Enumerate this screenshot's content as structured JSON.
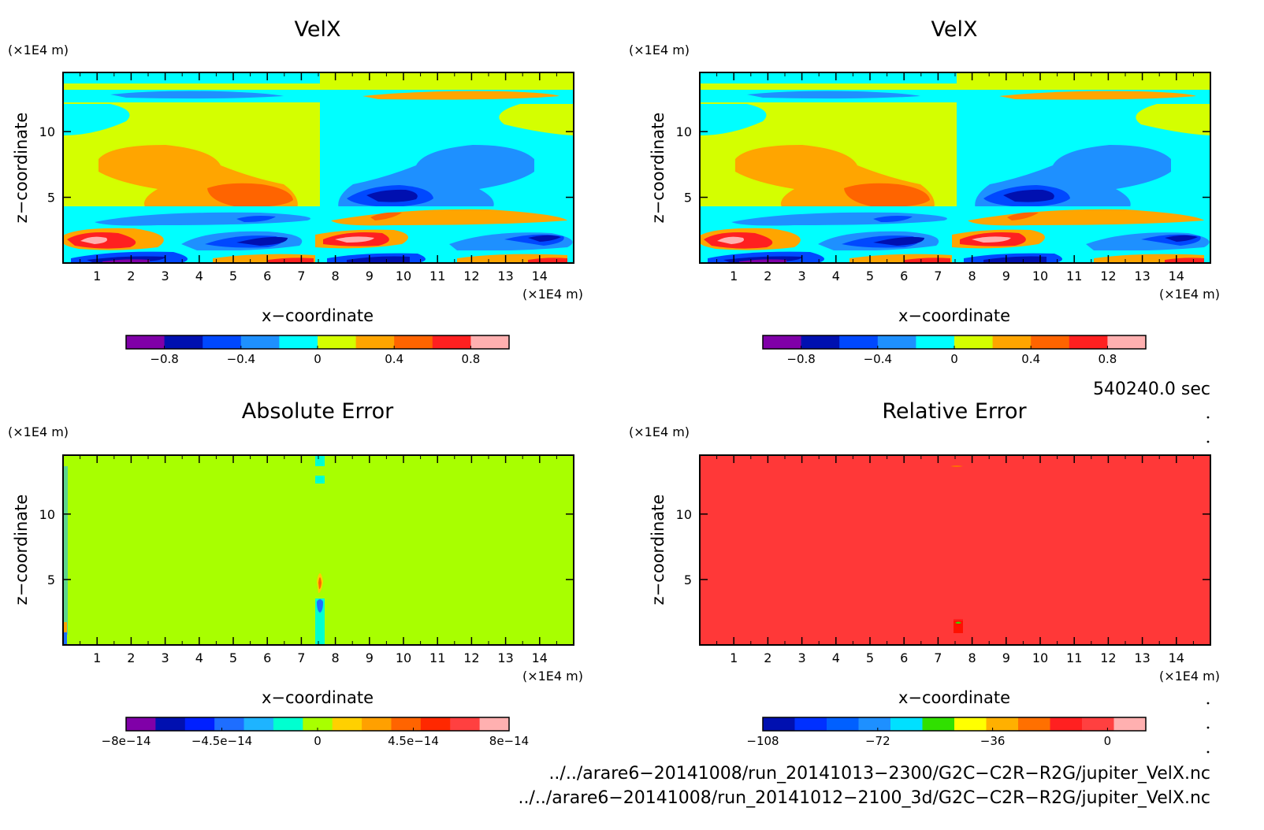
{
  "panels": [
    {
      "title": "VelX",
      "axis_unit": "(×1E4 m)",
      "xlabel": "x−coordinate",
      "ylabel": "z−coordinate",
      "x_ticks": [
        1,
        2,
        3,
        4,
        5,
        6,
        7,
        8,
        9,
        10,
        11,
        12,
        13,
        14
      ],
      "y_ticks": [
        5,
        10
      ],
      "colorbar": {
        "colors": [
          "#8000a8",
          "#0010b0",
          "#0048ff",
          "#1e90ff",
          "#00ffff",
          "#d4ff00",
          "#ffa500",
          "#ff6400",
          "#ff2020",
          "#ffb0b0"
        ],
        "labels": [
          "−0.8",
          "−0.4",
          "0",
          "0.4",
          "0.8"
        ]
      }
    },
    {
      "title": "VelX",
      "axis_unit": "(×1E4 m)",
      "xlabel": "x−coordinate",
      "ylabel": "z−coordinate",
      "x_ticks": [
        1,
        2,
        3,
        4,
        5,
        6,
        7,
        8,
        9,
        10,
        11,
        12,
        13,
        14
      ],
      "y_ticks": [
        5,
        10
      ],
      "colorbar": {
        "colors": [
          "#8000a8",
          "#0010b0",
          "#0048ff",
          "#1e90ff",
          "#00ffff",
          "#d4ff00",
          "#ffa500",
          "#ff6400",
          "#ff2020",
          "#ffb0b0"
        ],
        "labels": [
          "−0.8",
          "−0.4",
          "0",
          "0.4",
          "0.8"
        ]
      }
    },
    {
      "title": "Absolute Error",
      "axis_unit": "(×1E4 m)",
      "xlabel": "x−coordinate",
      "ylabel": "z−coordinate",
      "x_ticks": [
        1,
        2,
        3,
        4,
        5,
        6,
        7,
        8,
        9,
        10,
        11,
        12,
        13,
        14
      ],
      "y_ticks": [
        5,
        10
      ],
      "colorbar": {
        "colors": [
          "#8000a8",
          "#0010b0",
          "#0020ff",
          "#1e6eff",
          "#1eb4ff",
          "#00ffd0",
          "#a8ff00",
          "#ffd000",
          "#ffa000",
          "#ff6400",
          "#ff2800",
          "#ff4040",
          "#ffb0b0"
        ],
        "labels": [
          "−8e−14",
          "−4.5e−14",
          "0",
          "4.5e−14",
          "8e−14"
        ]
      }
    },
    {
      "title": "Relative Error",
      "axis_unit": "(×1E4 m)",
      "xlabel": "x−coordinate",
      "ylabel": "z−coordinate",
      "x_ticks": [
        1,
        2,
        3,
        4,
        5,
        6,
        7,
        8,
        9,
        10,
        11,
        12,
        13,
        14
      ],
      "y_ticks": [
        5,
        10
      ],
      "colorbar": {
        "colors": [
          "#0010b0",
          "#0030ff",
          "#0060ff",
          "#1e90ff",
          "#00e0ff",
          "#30e000",
          "#ffff00",
          "#ffb000",
          "#ff7000",
          "#ff2020",
          "#ff4040",
          "#ffb0b0"
        ],
        "labels": [
          "−108",
          "−72",
          "−36",
          "0"
        ]
      }
    }
  ],
  "time_label": "540240.0 sec",
  "file_paths": [
    "../../arare6−20141008/run_20141013−2300/G2C−C2R−R2G/jupiter_VelX.nc",
    "../../arare6−20141008/run_20141012−2100_3d/G2C−C2R−R2G/jupiter_VelX.nc"
  ],
  "chart_data": [
    {
      "type": "heatmap",
      "title": "VelX",
      "xlabel": "x−coordinate",
      "ylabel": "z−coordinate",
      "xlim": [
        0,
        15
      ],
      "ylim": [
        0,
        14.5
      ],
      "colorbar_ticks": [
        -0.8,
        -0.4,
        0,
        0.4,
        0.8
      ]
    },
    {
      "type": "heatmap",
      "title": "VelX",
      "xlabel": "x−coordinate",
      "ylabel": "z−coordinate",
      "xlim": [
        0,
        15
      ],
      "ylim": [
        0,
        14.5
      ],
      "colorbar_ticks": [
        -0.8,
        -0.4,
        0,
        0.4,
        0.8
      ]
    },
    {
      "type": "heatmap",
      "title": "Absolute Error",
      "xlabel": "x−coordinate",
      "ylabel": "z−coordinate",
      "xlim": [
        0,
        15
      ],
      "ylim": [
        0,
        14.5
      ],
      "colorbar_ticks": [
        -8e-14,
        -4.5e-14,
        0,
        4.5e-14,
        8e-14
      ]
    },
    {
      "type": "heatmap",
      "title": "Relative Error",
      "xlabel": "x−coordinate",
      "ylabel": "z−coordinate",
      "xlim": [
        0,
        15
      ],
      "ylim": [
        0,
        14.5
      ],
      "colorbar_ticks": [
        -108,
        -72,
        -36,
        0
      ]
    }
  ]
}
